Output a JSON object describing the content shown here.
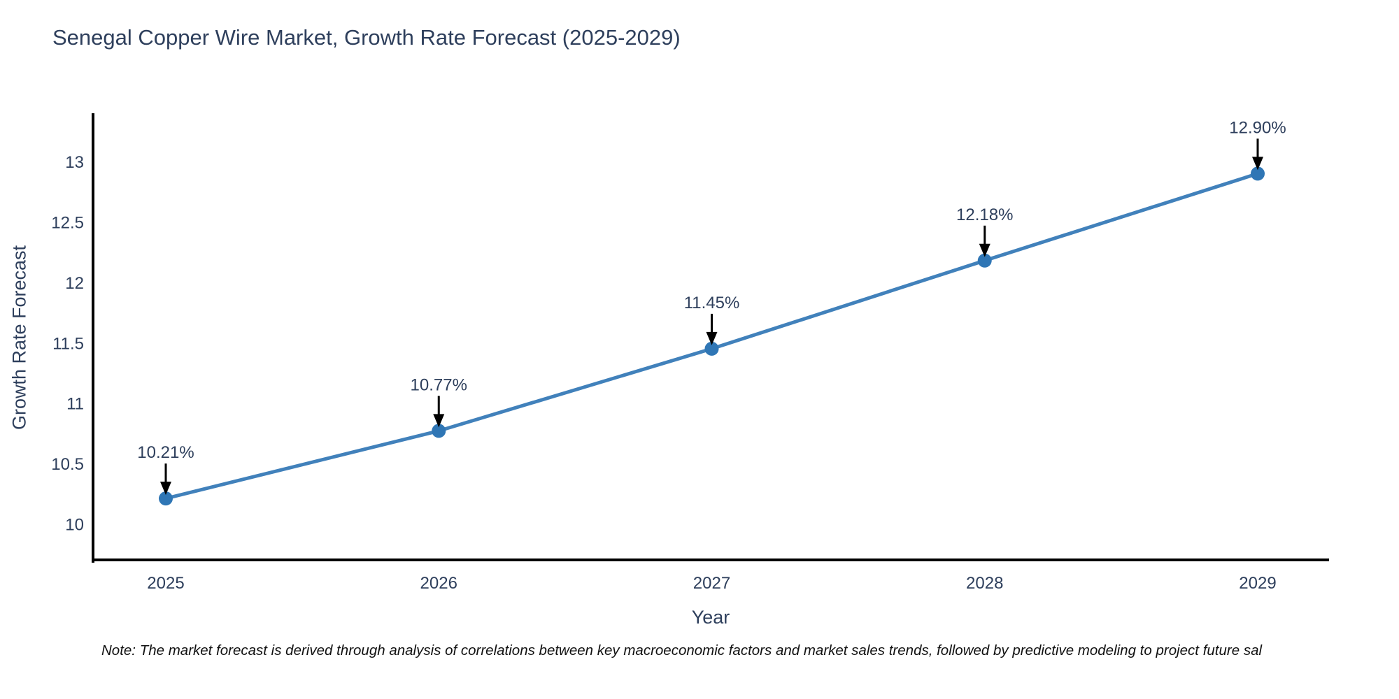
{
  "figure": {
    "note": "Note: The market forecast is derived through analysis of correlations between key macroeconomic factors and market sales trends, followed by predictive modeling to project future sal"
  },
  "chart_data": {
    "type": "line",
    "title": "Senegal Copper Wire Market, Growth Rate Forecast (2025-2029)",
    "xlabel": "Year",
    "ylabel": "Growth Rate Forecast",
    "categories": [
      "2025",
      "2026",
      "2027",
      "2028",
      "2029"
    ],
    "series": [
      {
        "name": "Growth Rate Forecast",
        "values": [
          10.21,
          10.77,
          11.45,
          12.18,
          12.9
        ],
        "point_labels": [
          "10.21%",
          "10.77%",
          "11.45%",
          "12.18%",
          "12.90%"
        ]
      }
    ],
    "yticks": [
      10,
      10.5,
      11,
      11.5,
      12,
      12.5,
      13
    ],
    "ylim": [
      9.69,
      13.4
    ],
    "grid": false,
    "legend": false,
    "annotations_style": "label-above-with-down-arrow",
    "colors": {
      "line": "#4181bb",
      "marker": "#2f76b5",
      "axis": "#000000",
      "text": "#2e3f5c",
      "arrow": "#000000",
      "note_text": "#111111"
    }
  }
}
